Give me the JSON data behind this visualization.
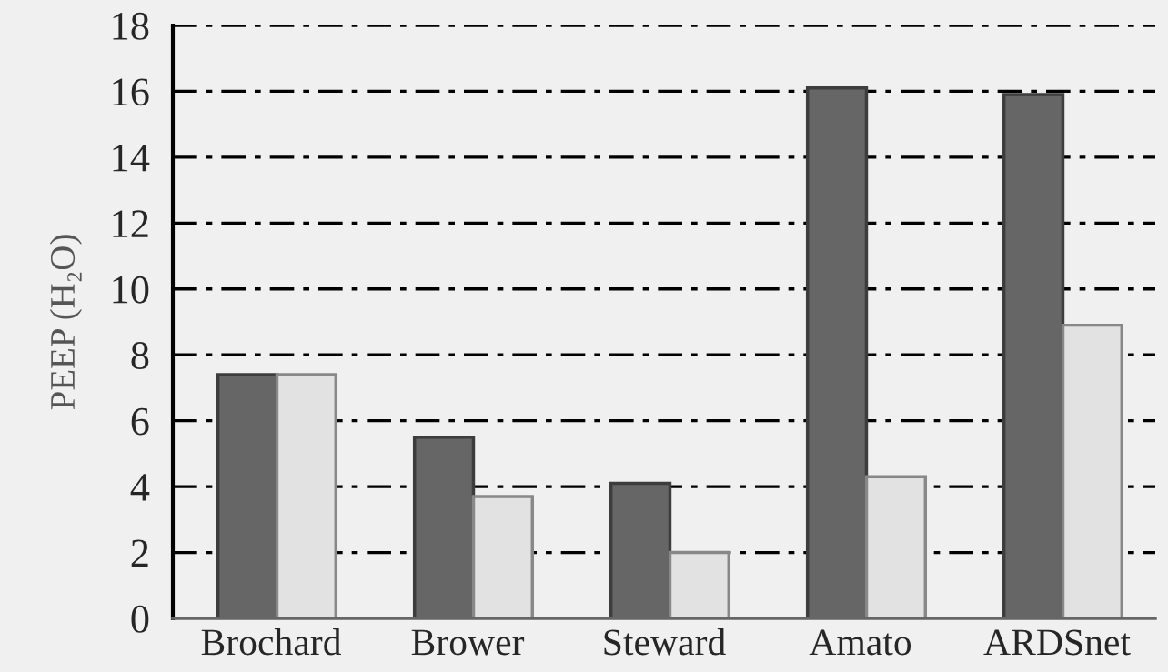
{
  "chart_data": {
    "type": "bar",
    "ylabel": "PEEP (H₂O)",
    "categories": [
      "Brochard",
      "Brower",
      "Steward",
      "Amato",
      "ARDSnet"
    ],
    "series": [
      {
        "color": "#666666",
        "values": [
          7.4,
          5.5,
          4.1,
          16.1,
          15.9
        ]
      },
      {
        "color": "#e2e2e2",
        "values": [
          7.4,
          3.7,
          2.0,
          4.3,
          8.9
        ]
      }
    ],
    "ylim": [
      0,
      18
    ],
    "yticks": [
      0,
      2,
      4,
      6,
      8,
      10,
      12,
      14,
      16,
      18
    ],
    "grid": "y"
  }
}
